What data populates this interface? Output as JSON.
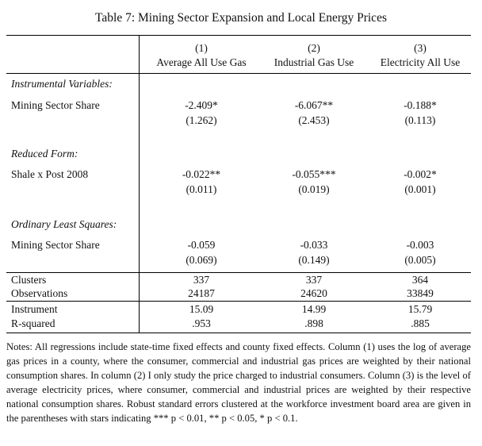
{
  "title": "Table 7: Mining Sector Expansion and Local Energy Prices",
  "columns": [
    {
      "number": "(1)",
      "label": "Average All Use Gas"
    },
    {
      "number": "(2)",
      "label": "Industrial Gas Use"
    },
    {
      "number": "(3)",
      "label": "Electricity All Use"
    }
  ],
  "sections": [
    {
      "heading": "Instrumental Variables:",
      "row_label": "Mining Sector Share",
      "coefs": [
        "-2.409*",
        "-6.067**",
        "-0.188*"
      ],
      "ses": [
        "(1.262)",
        "(2.453)",
        "(0.113)"
      ]
    },
    {
      "heading": "Reduced Form:",
      "row_label": "Shale x Post 2008",
      "coefs": [
        "-0.022**",
        "-0.055***",
        "-0.002*"
      ],
      "ses": [
        "(0.011)",
        "(0.019)",
        "(0.001)"
      ]
    },
    {
      "heading": "Ordinary Least Squares:",
      "row_label": "Mining Sector Share",
      "coefs": [
        "-0.059",
        "-0.033",
        "-0.003"
      ],
      "ses": [
        "(0.069)",
        "(0.149)",
        "(0.005)"
      ]
    }
  ],
  "stats": [
    {
      "label": "Clusters",
      "values": [
        "337",
        "337",
        "364"
      ]
    },
    {
      "label": "Observations",
      "values": [
        "24187",
        "24620",
        "33849"
      ]
    },
    {
      "label": "Instrument",
      "values": [
        "15.09",
        "14.99",
        "15.79"
      ]
    },
    {
      "label": "R-squared",
      "values": [
        ".953",
        ".898",
        ".885"
      ]
    }
  ],
  "notes": "Notes: All regressions include state-time fixed effects and county fixed effects. Column (1) uses the log of average gas prices in a county, where the consumer, commercial and industrial gas prices are weighted by their national consumption shares. In column (2) I only study the price charged to industrial consumers. Column (3) is the level of average electricity prices, where consumer, commercial and industrial prices are weighted by their respective national consumption shares. Robust standard errors clustered at the workforce investment board area are given in the parentheses with stars indicating *** p < 0.01, ** p < 0.05, * p < 0.1."
}
